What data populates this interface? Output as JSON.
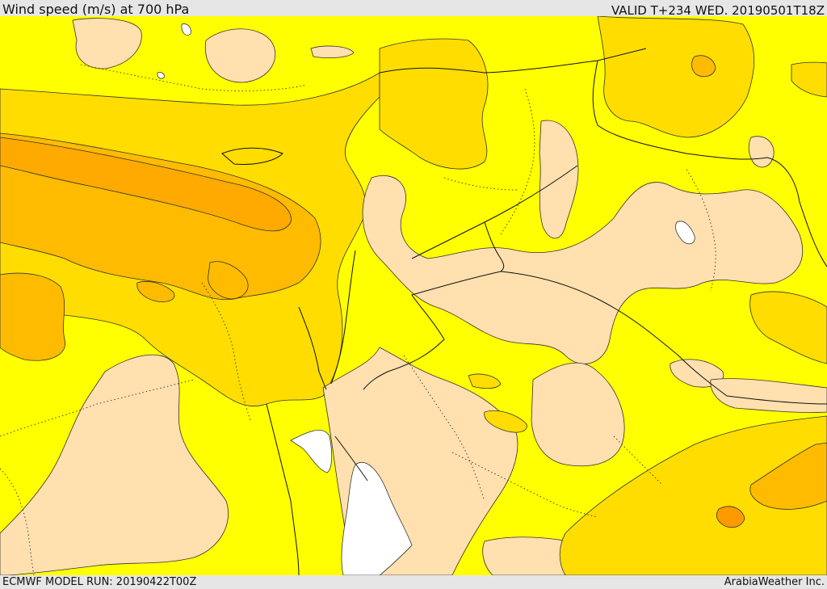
{
  "header": {
    "title": "Wind speed (m/s) at 700 hPa",
    "valid": "VALID T+234 WED. 20190501T18Z"
  },
  "footer": {
    "model_run": "ECMWF MODEL RUN: 20190422T00Z",
    "credit": "ArabiaWeather Inc."
  },
  "map": {
    "colors": {
      "band_low": "#ffe0ae",
      "band_mid": "#ffff00",
      "band_high": "#ffdd00",
      "band_higher": "#ffbb00",
      "band_max": "#ff9900",
      "water_no_data": "#ffffff",
      "contour": "#333333",
      "border": "#111111"
    }
  }
}
